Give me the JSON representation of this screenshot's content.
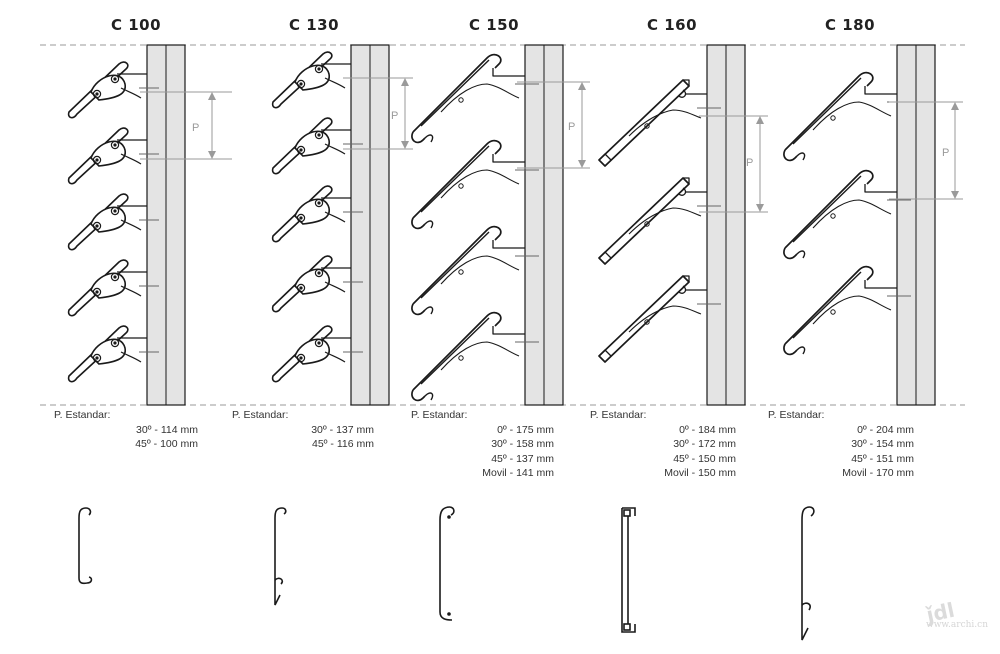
{
  "models": [
    {
      "title": "C 100",
      "spec_header": "P. Estandar:",
      "specs": [
        "30º - 114 mm",
        "45º - 100 mm"
      ],
      "pitch_label": "P"
    },
    {
      "title": "C 130",
      "spec_header": "P. Estandar:",
      "specs": [
        "30º - 137 mm",
        "45º - 116 mm"
      ],
      "pitch_label": "P"
    },
    {
      "title": "C 150",
      "spec_header": "P. Estandar:",
      "specs": [
        "0º - 175 mm",
        "30º - 158 mm",
        "45º - 137 mm",
        "Movil - 141 mm"
      ],
      "pitch_label": "P"
    },
    {
      "title": "C 160",
      "spec_header": "P. Estandar:",
      "specs": [
        "0º - 184 mm",
        "30º - 172 mm",
        "45º - 150 mm",
        "Movil - 150 mm"
      ],
      "pitch_label": "P"
    },
    {
      "title": "C 180",
      "spec_header": "P. Estandar:",
      "specs": [
        "0º - 204 mm",
        "30º - 154 mm",
        "45º - 151 mm",
        "Movil - 170 mm"
      ],
      "pitch_label": "P"
    }
  ],
  "watermark": {
    "text": "www.archi.cn",
    "icon": "logo-stamp"
  },
  "colors": {
    "line": "#1a1a1a",
    "wall": "#e4e4e4",
    "guide": "#9a9a9a"
  }
}
